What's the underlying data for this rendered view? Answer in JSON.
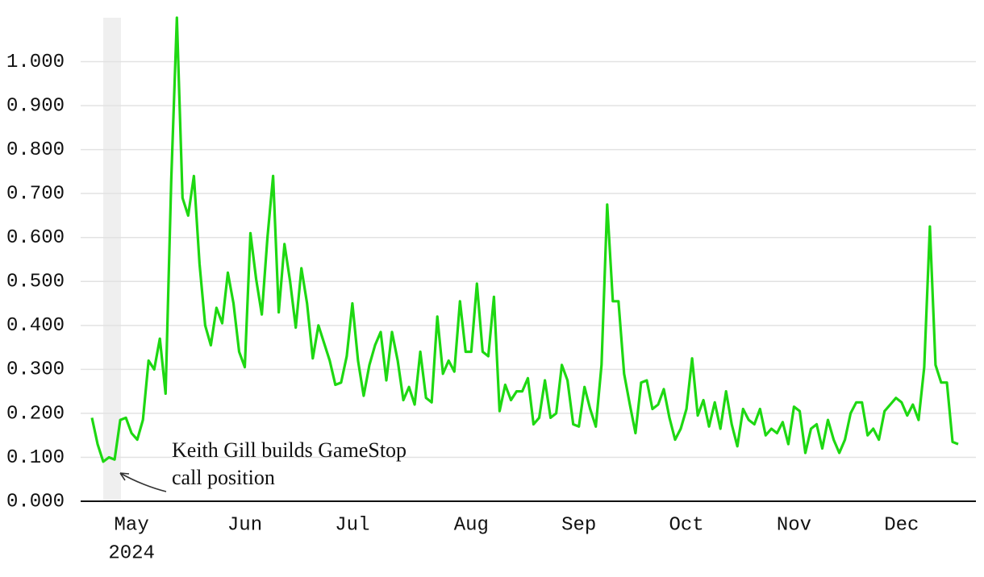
{
  "chart_data": {
    "type": "line",
    "categories": [
      null,
      null,
      null,
      null,
      null,
      null,
      null,
      "May",
      null,
      null,
      null,
      null,
      null,
      null,
      null,
      null,
      null,
      null,
      null,
      null,
      null,
      null,
      null,
      null,
      null,
      null,
      null,
      "Jun",
      null,
      null,
      null,
      null,
      null,
      null,
      null,
      null,
      null,
      null,
      null,
      null,
      null,
      null,
      null,
      null,
      null,
      null,
      "Jul",
      null,
      null,
      null,
      null,
      null,
      null,
      null,
      null,
      null,
      null,
      null,
      null,
      null,
      null,
      null,
      null,
      null,
      null,
      null,
      null,
      "Aug",
      null,
      null,
      null,
      null,
      null,
      null,
      null,
      null,
      null,
      null,
      null,
      null,
      null,
      null,
      null,
      null,
      null,
      null,
      "Sep",
      null,
      null,
      null,
      null,
      null,
      null,
      null,
      null,
      null,
      null,
      null,
      null,
      null,
      null,
      null,
      null,
      null,
      null,
      "Oct",
      null,
      null,
      null,
      null,
      null,
      null,
      null,
      null,
      null,
      null,
      null,
      null,
      null,
      null,
      null,
      null,
      null,
      null,
      "Nov",
      null,
      null,
      null,
      null,
      null,
      null,
      null,
      null,
      null,
      null,
      null,
      null,
      null,
      null,
      null,
      null,
      null,
      null,
      "Dec",
      null,
      null,
      null,
      null,
      null,
      null,
      null,
      null,
      null,
      null
    ],
    "x_year_label": "2024",
    "series": [
      {
        "color": "#1ed812",
        "values": [
          0.19,
          0.13,
          0.09,
          0.1,
          0.095,
          0.185,
          0.19,
          0.155,
          0.14,
          0.185,
          0.32,
          0.3,
          0.37,
          0.245,
          0.73,
          1.1,
          0.69,
          0.65,
          0.74,
          0.54,
          0.4,
          0.355,
          0.44,
          0.405,
          0.52,
          0.45,
          0.34,
          0.305,
          0.61,
          0.505,
          0.425,
          0.6,
          0.74,
          0.43,
          0.585,
          0.5,
          0.395,
          0.53,
          0.45,
          0.325,
          0.4,
          0.36,
          0.32,
          0.265,
          0.27,
          0.33,
          0.45,
          0.32,
          0.24,
          0.31,
          0.355,
          0.385,
          0.275,
          0.385,
          0.32,
          0.23,
          0.26,
          0.22,
          0.34,
          0.235,
          0.225,
          0.42,
          0.29,
          0.32,
          0.295,
          0.455,
          0.34,
          0.34,
          0.495,
          0.34,
          0.33,
          0.465,
          0.205,
          0.265,
          0.23,
          0.25,
          0.25,
          0.28,
          0.175,
          0.19,
          0.275,
          0.19,
          0.2,
          0.31,
          0.275,
          0.175,
          0.17,
          0.26,
          0.21,
          0.17,
          0.31,
          0.675,
          0.455,
          0.455,
          0.29,
          0.22,
          0.155,
          0.27,
          0.275,
          0.21,
          0.22,
          0.255,
          0.19,
          0.14,
          0.165,
          0.21,
          0.325,
          0.195,
          0.23,
          0.17,
          0.225,
          0.165,
          0.25,
          0.175,
          0.125,
          0.21,
          0.185,
          0.175,
          0.21,
          0.15,
          0.165,
          0.155,
          0.18,
          0.13,
          0.215,
          0.205,
          0.11,
          0.165,
          0.175,
          0.12,
          0.185,
          0.14,
          0.11,
          0.14,
          0.2,
          0.225,
          0.225,
          0.15,
          0.165,
          0.14,
          0.205,
          0.22,
          0.235,
          0.225,
          0.195,
          0.22,
          0.185,
          0.305,
          0.625,
          0.31,
          0.27,
          0.27,
          0.135,
          0.13
        ]
      }
    ],
    "ylim": [
      0,
      1.1
    ],
    "yticks": [
      {
        "value": 0,
        "label": "0.000"
      },
      {
        "value": 0.1,
        "label": "0.100"
      },
      {
        "value": 0.2,
        "label": "0.200"
      },
      {
        "value": 0.3,
        "label": "0.300"
      },
      {
        "value": 0.4,
        "label": "0.400"
      },
      {
        "value": 0.5,
        "label": "0.500"
      },
      {
        "value": 0.6,
        "label": "0.600"
      },
      {
        "value": 0.7,
        "label": "0.700"
      },
      {
        "value": 0.8,
        "label": "0.800"
      },
      {
        "value": 0.9,
        "label": "0.900"
      },
      {
        "value": 1.0,
        "label": "1.000"
      }
    ],
    "grid": true,
    "annotation": {
      "lines": [
        "Keith Gill builds GameStop",
        "call position"
      ]
    }
  }
}
